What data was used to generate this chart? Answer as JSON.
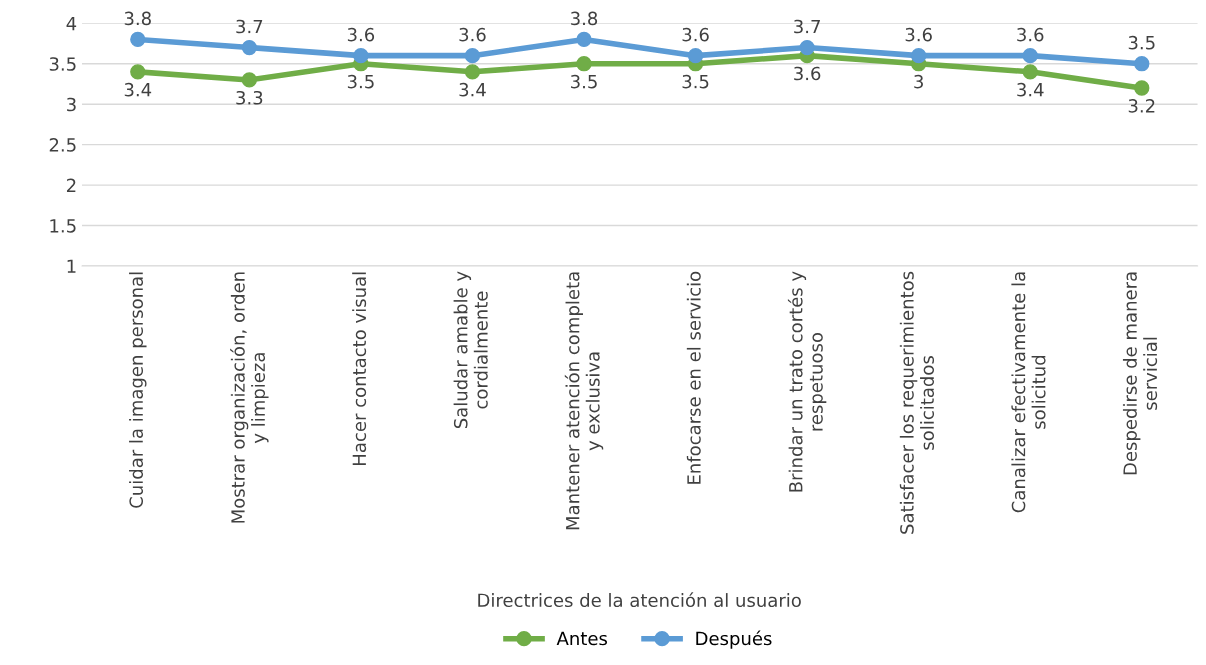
{
  "chart_data": {
    "type": "line",
    "xlabel": "Directrices de la atención al usuario",
    "categories": [
      "Cuidar la imagen personal",
      "Mostrar organización, orden\ny limpieza",
      "Hacer contacto visual",
      "Saludar amable y\ncordialmente",
      "Mantener atención completa\ny exclusiva",
      "Enfocarse en el servicio",
      "Brindar un trato cortés y\nrespetuoso",
      "Satisfacer los requerimientos\nsolicitados",
      "Canalizar efectivamente la\nsolicitud",
      "Despedirse de manera\nservicial"
    ],
    "series": [
      {
        "name": "Antes",
        "color": "#70ad47",
        "values": [
          3.4,
          3.3,
          3.5,
          3.4,
          3.5,
          3.5,
          3.6,
          3.5,
          3.4,
          3.2
        ],
        "value_labels": [
          "3.4",
          "3.3",
          "3.5",
          "3.4",
          "3.5",
          "3.5",
          "3.6",
          "3",
          "3.4",
          "3.2"
        ]
      },
      {
        "name": "Después",
        "color": "#5b9bd5",
        "values": [
          3.8,
          3.7,
          3.6,
          3.6,
          3.8,
          3.6,
          3.7,
          3.6,
          3.6,
          3.5
        ],
        "value_labels": [
          "3.8",
          "3.7",
          "3.6",
          "3.6",
          "3.8",
          "3.6",
          "3.7",
          "3.6",
          "3.6",
          "3.5"
        ]
      }
    ],
    "ylim": [
      1,
      4
    ],
    "yticks": [
      1,
      1.5,
      2,
      2.5,
      3,
      3.5,
      4
    ],
    "grid": "y",
    "legend": "bottom",
    "marker": "circle",
    "line_style": "solid"
  }
}
